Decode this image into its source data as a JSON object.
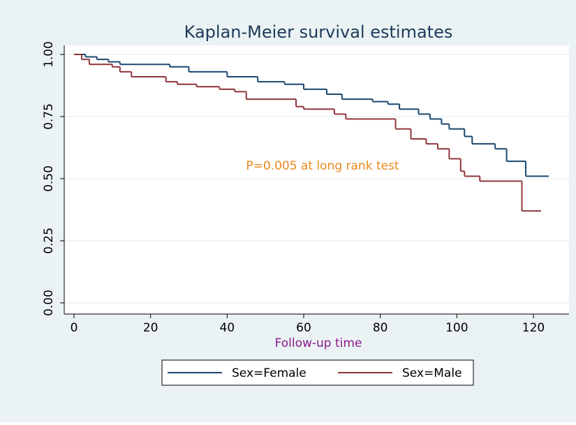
{
  "chart_data": {
    "type": "step",
    "title": "Kaplan-Meier survival estimates",
    "x_label": "Follow-up time",
    "annotation": "P=0.005 at long rank test",
    "xlim": [
      0,
      124
    ],
    "xticks": [
      0,
      20,
      40,
      60,
      80,
      100,
      120
    ],
    "ylim": [
      0,
      1
    ],
    "yticks": [
      {
        "value": 0,
        "label": "0.00"
      },
      {
        "value": 0.25,
        "label": "0.25"
      },
      {
        "value": 0.5,
        "label": "0.50"
      },
      {
        "value": 0.75,
        "label": "0.75"
      },
      {
        "value": 1,
        "label": "1.00"
      }
    ],
    "grid": true,
    "series": [
      {
        "name": "Sex=Female",
        "color": "#1a476f",
        "x": [
          0,
          3,
          6,
          9,
          12,
          25,
          30,
          40,
          48,
          55,
          60,
          66,
          70,
          78,
          82,
          85,
          90,
          93,
          96,
          98,
          102,
          104,
          110,
          113,
          118,
          124
        ],
        "values": [
          1,
          0.99,
          0.98,
          0.97,
          0.96,
          0.95,
          0.93,
          0.91,
          0.89,
          0.88,
          0.86,
          0.84,
          0.82,
          0.81,
          0.8,
          0.78,
          0.76,
          0.74,
          0.72,
          0.7,
          0.67,
          0.64,
          0.62,
          0.57,
          0.51,
          0.51
        ]
      },
      {
        "name": "Sex=Male",
        "color": "#90353b",
        "x": [
          0,
          2,
          4,
          10,
          12,
          15,
          24,
          27,
          32,
          38,
          42,
          45,
          58,
          60,
          68,
          71,
          84,
          88,
          92,
          95,
          98,
          101,
          102,
          106,
          117,
          122
        ],
        "values": [
          1,
          0.98,
          0.96,
          0.95,
          0.93,
          0.91,
          0.89,
          0.88,
          0.87,
          0.86,
          0.85,
          0.82,
          0.79,
          0.78,
          0.76,
          0.74,
          0.7,
          0.66,
          0.64,
          0.62,
          0.58,
          0.53,
          0.51,
          0.49,
          0.37,
          0.37
        ]
      }
    ]
  }
}
